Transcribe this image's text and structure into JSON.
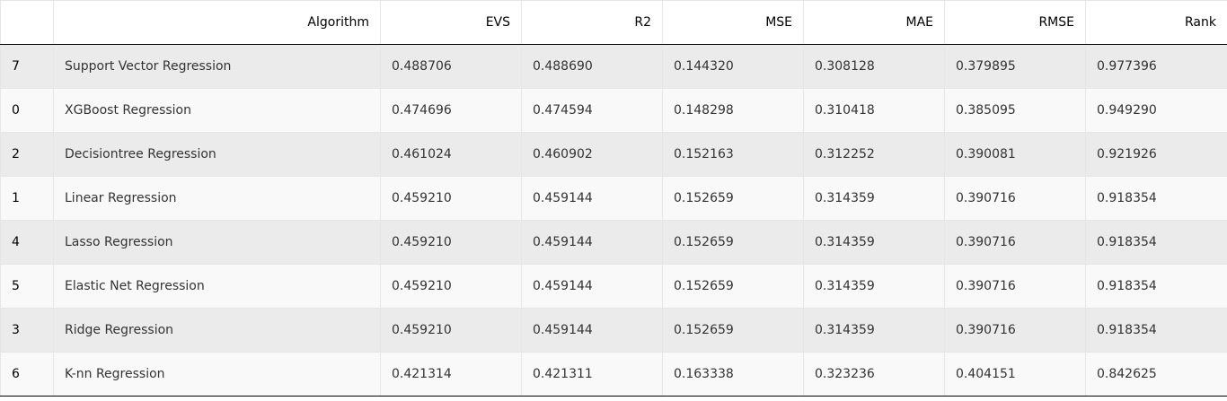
{
  "table": {
    "headers": [
      "",
      "Algorithm",
      "EVS",
      "R2",
      "MSE",
      "MAE",
      "RMSE",
      "Rank"
    ],
    "rows": [
      [
        "7",
        "Support Vector Regression",
        "0.488706",
        "0.488690",
        "0.144320",
        "0.308128",
        "0.379895",
        "0.977396"
      ],
      [
        "0",
        "XGBoost Regression",
        "0.474696",
        "0.474594",
        "0.148298",
        "0.310418",
        "0.385095",
        "0.949290"
      ],
      [
        "2",
        "Decisiontree Regression",
        "0.461024",
        "0.460902",
        "0.152163",
        "0.312252",
        "0.390081",
        "0.921926"
      ],
      [
        "1",
        "Linear Regression",
        "0.459210",
        "0.459144",
        "0.152659",
        "0.314359",
        "0.390716",
        "0.918354"
      ],
      [
        "4",
        "Lasso Regression",
        "0.459210",
        "0.459144",
        "0.152659",
        "0.314359",
        "0.390716",
        "0.918354"
      ],
      [
        "5",
        "Elastic Net Regression",
        "0.459210",
        "0.459144",
        "0.152659",
        "0.314359",
        "0.390716",
        "0.918354"
      ],
      [
        "3",
        "Ridge Regression",
        "0.459210",
        "0.459144",
        "0.152659",
        "0.314359",
        "0.390716",
        "0.918354"
      ],
      [
        "6",
        "K-nn Regression",
        "0.421314",
        "0.421311",
        "0.163338",
        "0.323236",
        "0.404151",
        "0.842625"
      ]
    ]
  },
  "colors": {
    "row_odd": "#ebebeb",
    "row_even": "#f9f9f9",
    "border": "#e6e6e6",
    "header_rule": "#000000"
  }
}
